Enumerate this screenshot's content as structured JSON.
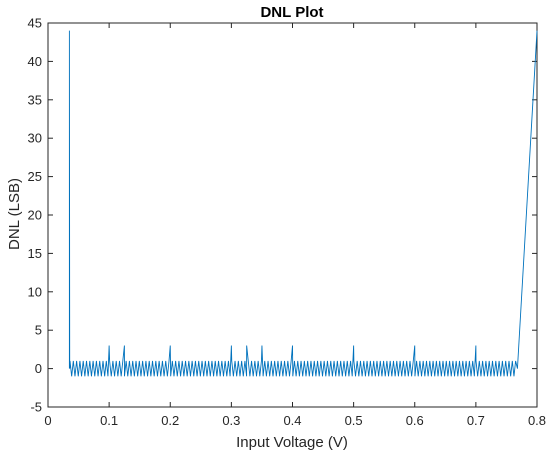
{
  "chart_data": {
    "type": "line",
    "title": "DNL Plot",
    "xlabel": "Input Voltage (V)",
    "ylabel": "DNL (LSB)",
    "xlim": [
      0,
      0.8
    ],
    "ylim": [
      -5,
      45
    ],
    "x_ticks": [
      0,
      0.1,
      0.2,
      0.3,
      0.4,
      0.5,
      0.6,
      0.7,
      0.8
    ],
    "x_tick_labels": [
      "0",
      "0.1",
      "0.2",
      "0.3",
      "0.4",
      "0.5",
      "0.6",
      "0.7",
      "0.8"
    ],
    "y_ticks": [
      -5,
      0,
      5,
      10,
      15,
      20,
      25,
      30,
      35,
      40,
      45
    ],
    "y_tick_labels": [
      "-5",
      "0",
      "5",
      "10",
      "15",
      "20",
      "25",
      "30",
      "35",
      "40",
      "45"
    ],
    "grid": false,
    "box": true,
    "line_color": "#0072BD",
    "series": [
      {
        "start_x": 0.035,
        "start_spike": 44,
        "band_start": 0.036,
        "band_end": 0.766,
        "band_step": 0.0027,
        "band_high": 1,
        "band_low": -1,
        "spikes": [
          {
            "x": 0.1,
            "y": 3
          },
          {
            "x": 0.125,
            "y": 3
          },
          {
            "x": 0.2,
            "y": 3
          },
          {
            "x": 0.3,
            "y": 3
          },
          {
            "x": 0.325,
            "y": 3
          },
          {
            "x": 0.35,
            "y": 3
          },
          {
            "x": 0.4,
            "y": 3
          },
          {
            "x": 0.5,
            "y": 3
          },
          {
            "x": 0.6,
            "y": 3
          },
          {
            "x": 0.7,
            "y": 3
          }
        ],
        "end_points": [
          {
            "x": 0.768,
            "y": 0
          },
          {
            "x": 0.8,
            "y": 44
          }
        ]
      }
    ]
  }
}
